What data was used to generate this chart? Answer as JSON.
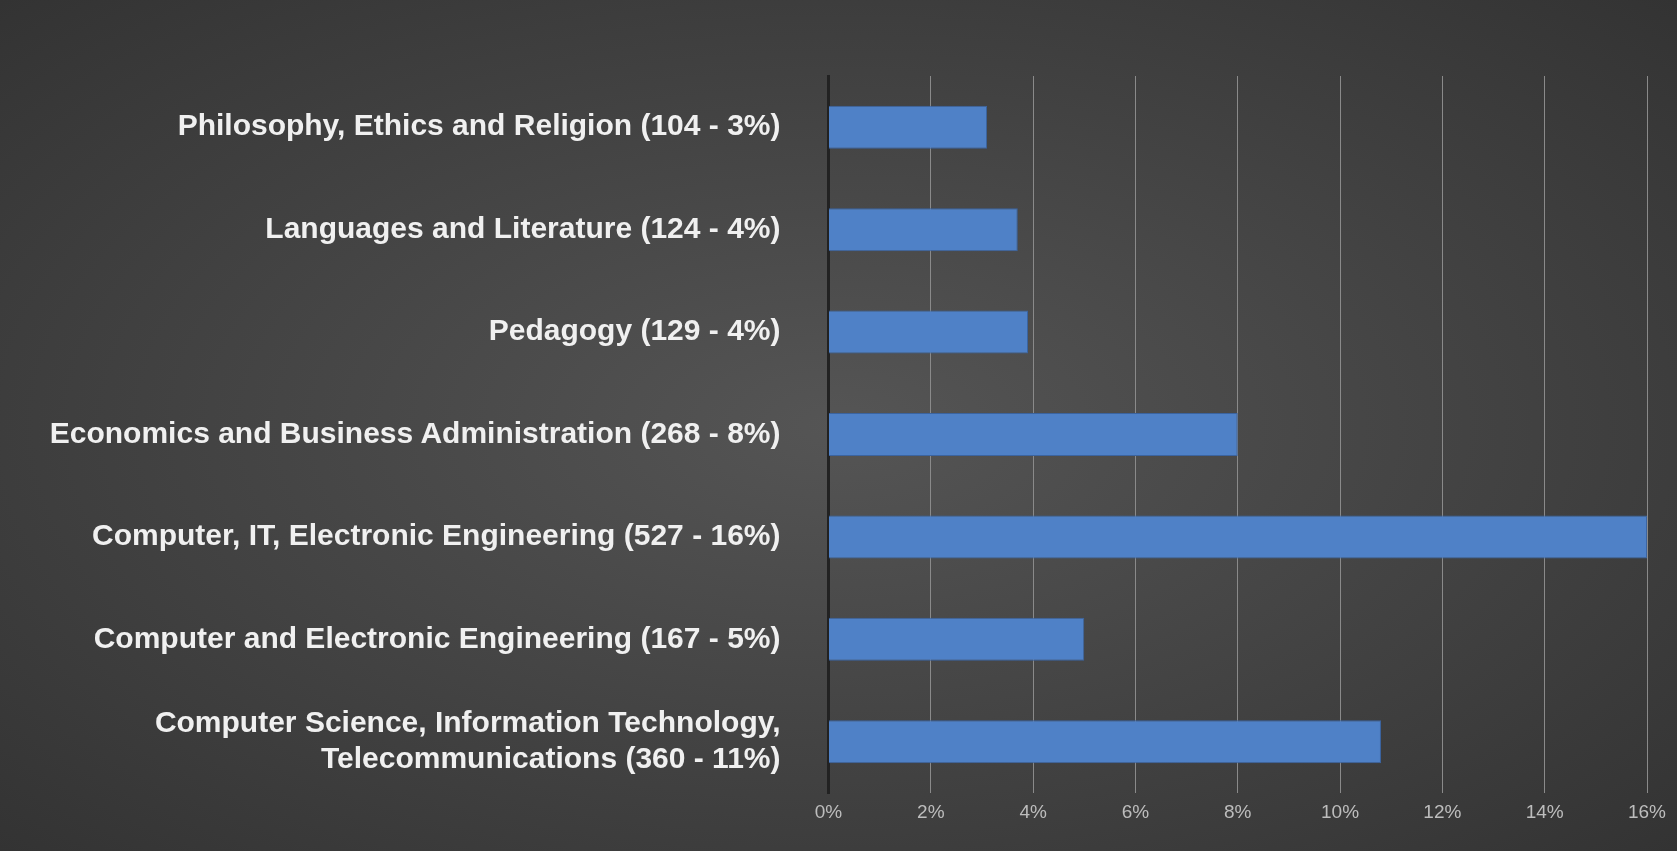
{
  "chart_data": {
    "type": "bar",
    "orientation": "horizontal",
    "categories": [
      "Philosophy, Ethics and Religion (104 - 3%)",
      "Languages and Literature (124 - 4%)",
      "Pedagogy (129 - 4%)",
      "Economics and Business Administration (268 - 8%)",
      "Computer, IT, Electronic Engineering (527 - 16%)",
      "Computer and Electronic Engineering (167 - 5%)",
      "Computer Science, Information Technology, Telecommunications (360 - 11%)"
    ],
    "values": [
      3.1,
      3.7,
      3.9,
      8.0,
      16.0,
      5.0,
      10.8
    ],
    "color": "#4f81c7",
    "xlim": [
      0,
      16
    ],
    "xticks": [
      {
        "value": 0,
        "label": "0%"
      },
      {
        "value": 2,
        "label": "2%"
      },
      {
        "value": 4,
        "label": "4%"
      },
      {
        "value": 6,
        "label": "6%"
      },
      {
        "value": 8,
        "label": "8%"
      },
      {
        "value": 10,
        "label": "10%"
      },
      {
        "value": 12,
        "label": "12%"
      },
      {
        "value": 14,
        "label": "14%"
      },
      {
        "value": 16,
        "label": "16%"
      }
    ],
    "grid": "x",
    "legend": false
  }
}
